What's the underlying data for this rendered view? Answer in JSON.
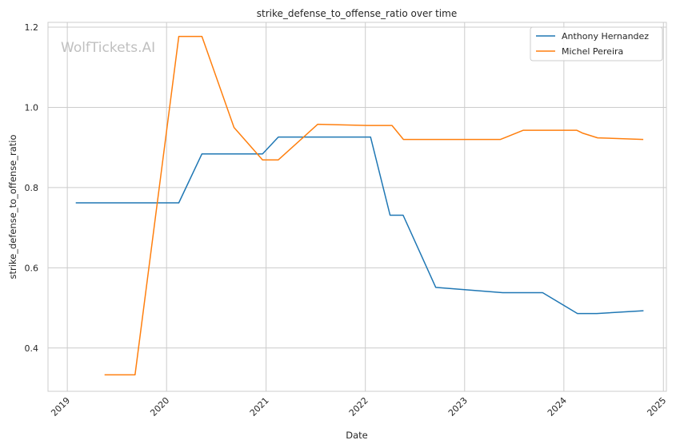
{
  "chart_data": {
    "type": "line",
    "title": "strike_defense_to_offense_ratio over time",
    "xlabel": "Date",
    "ylabel": "strike_defense_to_offense_ratio",
    "watermark": "WolfTickets.AI",
    "x_ticks": [
      "2019",
      "2020",
      "2021",
      "2022",
      "2023",
      "2024",
      "2025"
    ],
    "y_ticks": [
      "0.4",
      "0.6",
      "0.8",
      "1.0",
      "1.2"
    ],
    "xlim": [
      "2018-10-22",
      "2025-01-12"
    ],
    "ylim": [
      0.292,
      1.212
    ],
    "grid": true,
    "legend_position": "top-right",
    "series": [
      {
        "name": "Anthony Hernandez",
        "color": "#1f77b4",
        "points": [
          [
            "2019-02-01",
            0.762
          ],
          [
            "2020-02-15",
            0.762
          ],
          [
            "2020-05-10",
            0.884
          ],
          [
            "2020-12-19",
            0.884
          ],
          [
            "2021-02-15",
            0.926
          ],
          [
            "2022-01-20",
            0.926
          ],
          [
            "2022-04-02",
            0.731
          ],
          [
            "2022-05-20",
            0.731
          ],
          [
            "2022-09-17",
            0.551
          ],
          [
            "2023-05-21",
            0.538
          ],
          [
            "2023-10-15",
            0.538
          ],
          [
            "2024-02-20",
            0.486
          ],
          [
            "2024-05-01",
            0.486
          ],
          [
            "2024-10-20",
            0.493
          ]
        ]
      },
      {
        "name": "Michel Pereira",
        "color": "#ff7f0e",
        "points": [
          [
            "2019-05-18",
            0.333
          ],
          [
            "2019-09-07",
            0.333
          ],
          [
            "2020-02-15",
            1.177
          ],
          [
            "2020-05-10",
            1.177
          ],
          [
            "2020-09-05",
            0.95
          ],
          [
            "2020-12-19",
            0.869
          ],
          [
            "2021-02-15",
            0.869
          ],
          [
            "2021-07-10",
            0.958
          ],
          [
            "2022-01-08",
            0.955
          ],
          [
            "2022-04-09",
            0.955
          ],
          [
            "2022-05-21",
            0.92
          ],
          [
            "2023-05-13",
            0.92
          ],
          [
            "2023-08-05",
            0.943
          ],
          [
            "2024-02-17",
            0.943
          ],
          [
            "2024-03-09",
            0.936
          ],
          [
            "2024-05-04",
            0.924
          ],
          [
            "2024-10-19",
            0.92
          ]
        ]
      }
    ]
  }
}
